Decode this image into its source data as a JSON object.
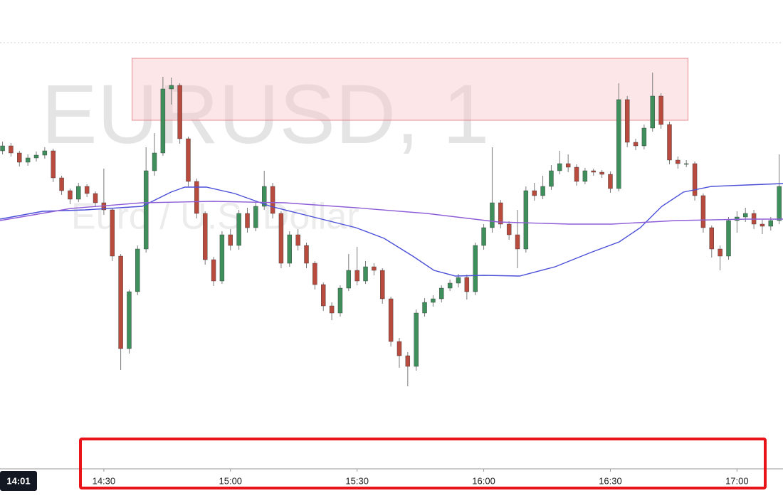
{
  "chart_data": {
    "type": "candlestick",
    "title": "EURUSD, 1",
    "subtitle": "Euro / U.S. Dollar",
    "crosshair_label": "14:01",
    "up_color": "#3f8f5c",
    "down_color": "#b84a3e",
    "wick_color": "#7a7a7a",
    "xlim": [
      5.4,
      190.9
    ],
    "ylim": [
      0,
      707
    ],
    "xticks": [
      {
        "value": 30,
        "label": "14:30"
      },
      {
        "value": 60,
        "label": "15:00"
      },
      {
        "value": 90,
        "label": "15:30"
      },
      {
        "value": 120,
        "label": "16:00"
      },
      {
        "value": 150,
        "label": "16:30"
      },
      {
        "value": 180,
        "label": "17:00"
      }
    ],
    "x": [
      6,
      8,
      10,
      12,
      14,
      16,
      18,
      20,
      22,
      24,
      26,
      28,
      30,
      32,
      34,
      36,
      38,
      40,
      42,
      44,
      46,
      48,
      50,
      52,
      54,
      56,
      58,
      60,
      62,
      64,
      66,
      68,
      70,
      72,
      74,
      76,
      78,
      80,
      82,
      84,
      86,
      88,
      90,
      92,
      94,
      96,
      98,
      100,
      102,
      104,
      106,
      108,
      110,
      112,
      114,
      116,
      118,
      120,
      122,
      124,
      126,
      128,
      130,
      132,
      134,
      136,
      138,
      140,
      142,
      144,
      146,
      148,
      150,
      152,
      154,
      156,
      158,
      160,
      162,
      164,
      166,
      168,
      170,
      172,
      174,
      176,
      178,
      180,
      182,
      184,
      186,
      188,
      190
    ],
    "open": [
      495,
      502,
      492,
      479,
      485,
      489,
      495,
      457,
      439,
      427,
      445,
      435,
      422,
      412,
      347,
      217,
      297,
      357,
      467,
      492,
      582,
      587,
      512,
      452,
      407,
      342,
      312,
      377,
      362,
      407,
      387,
      417,
      445,
      407,
      337,
      377,
      362,
      337,
      307,
      277,
      267,
      302,
      327,
      312,
      332,
      327,
      287,
      227,
      207,
      192,
      267,
      282,
      287,
      302,
      309,
      317,
      297,
      362,
      387,
      422,
      392,
      377,
      357,
      439,
      432,
      445,
      467,
      477,
      472,
      452,
      467,
      465,
      462,
      442,
      567,
      507,
      502,
      527,
      572,
      532,
      482,
      477,
      477,
      432,
      387,
      357,
      347,
      397,
      402,
      407,
      392,
      389,
      397
    ],
    "high": [
      508,
      506,
      495,
      490,
      494,
      500,
      498,
      460,
      442,
      450,
      448,
      438,
      470,
      415,
      350,
      300,
      362,
      500,
      520,
      599,
      598,
      590,
      515,
      456,
      410,
      346,
      382,
      385,
      412,
      415,
      422,
      467,
      450,
      410,
      382,
      385,
      366,
      340,
      310,
      282,
      306,
      350,
      360,
      340,
      337,
      330,
      290,
      232,
      212,
      272,
      288,
      292,
      306,
      314,
      322,
      321,
      366,
      392,
      500,
      426,
      396,
      412,
      445,
      450,
      460,
      475,
      495,
      490,
      476,
      471,
      470,
      468,
      466,
      590,
      572,
      512,
      532,
      605,
      576,
      536,
      487,
      482,
      480,
      435,
      390,
      362,
      402,
      410,
      415,
      412,
      398,
      402,
      490
    ],
    "low": [
      490,
      487,
      473,
      474,
      480,
      484,
      451,
      433,
      420,
      423,
      430,
      416,
      405,
      340,
      187,
      210,
      292,
      352,
      460,
      488,
      560,
      505,
      445,
      400,
      335,
      305,
      308,
      355,
      356,
      380,
      382,
      412,
      400,
      330,
      332,
      355,
      330,
      300,
      270,
      257,
      262,
      298,
      306,
      308,
      320,
      280,
      220,
      190,
      164,
      186,
      262,
      276,
      282,
      298,
      303,
      286,
      292,
      356,
      380,
      386,
      370,
      330,
      352,
      425,
      427,
      440,
      462,
      465,
      446,
      448,
      460,
      457,
      436,
      438,
      500,
      496,
      497,
      522,
      526,
      476,
      470,
      472,
      425,
      380,
      345,
      327,
      342,
      380,
      395,
      385,
      378,
      383,
      392
    ],
    "close": [
      502,
      492,
      479,
      485,
      489,
      495,
      457,
      439,
      427,
      445,
      435,
      422,
      412,
      347,
      217,
      297,
      357,
      467,
      492,
      582,
      587,
      512,
      452,
      407,
      342,
      312,
      377,
      362,
      407,
      387,
      417,
      445,
      407,
      337,
      377,
      362,
      337,
      307,
      277,
      267,
      302,
      327,
      312,
      332,
      327,
      287,
      227,
      207,
      192,
      267,
      282,
      287,
      302,
      309,
      317,
      297,
      362,
      387,
      422,
      392,
      377,
      357,
      439,
      432,
      445,
      467,
      477,
      472,
      452,
      467,
      465,
      462,
      442,
      567,
      507,
      502,
      527,
      572,
      532,
      482,
      477,
      477,
      432,
      387,
      357,
      347,
      397,
      402,
      407,
      392,
      389,
      397,
      445
    ],
    "lines": [
      {
        "color": "#4a4fd8",
        "x": [
          5.4,
          15.5,
          25.6,
          39.1,
          45.9,
          49.2,
          54.3,
          61.0,
          69.5,
          79.6,
          89.7,
          96.4,
          103.2,
          108.2,
          113.3,
          120.1,
          128.5,
          136.9,
          145.3,
          152.1,
          157.1,
          162.2,
          167.3,
          174.0,
          182.4,
          190.9
        ],
        "values": [
          399,
          410,
          412,
          417,
          437,
          444,
          444,
          435,
          417,
          402,
          387,
          372,
          347,
          327,
          319,
          320,
          319,
          332,
          352,
          367,
          387,
          417,
          437,
          445,
          447,
          449
        ]
      },
      {
        "color": "#8e5ed8",
        "x": [
          5.4,
          22.2,
          39.1,
          55.9,
          72.8,
          89.7,
          106.5,
          123.4,
          140.3,
          150.4,
          165.6,
          182.4,
          190.9
        ],
        "values": [
          397,
          414,
          422,
          424,
          422,
          415,
          407,
          395,
          392,
          392,
          397,
          399,
          399
        ]
      }
    ],
    "zones": [
      {
        "xlim": [
          36.7,
          168.4
        ],
        "ylim": [
          538,
          625
        ],
        "color": "#f8c8cc"
      }
    ]
  }
}
